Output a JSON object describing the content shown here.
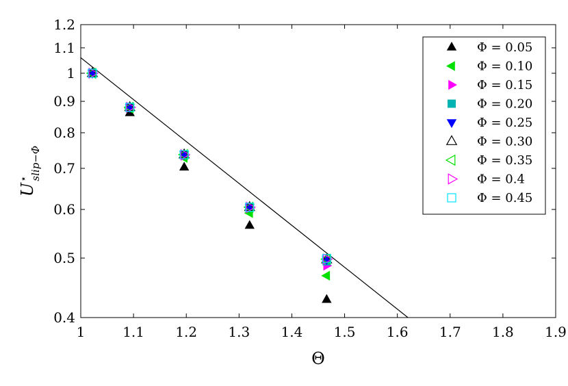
{
  "chart_data": {
    "type": "scatter",
    "xlabel": "Θ",
    "ylabel_main": "U",
    "ylabel_sup": "⋆",
    "ylabel_sub": "slip−Φ",
    "xlim": [
      1,
      1.9
    ],
    "ylim": [
      0.4,
      1.2
    ],
    "yscale": "log",
    "xticks": [
      1,
      1.1,
      1.2,
      1.3,
      1.4,
      1.5,
      1.6,
      1.7,
      1.8,
      1.9
    ],
    "xtick_labels": [
      "1",
      "1.1",
      "1.2",
      "1.3",
      "1.4",
      "1.5",
      "1.6",
      "1.7",
      "1.8",
      "1.9"
    ],
    "yticks": [
      0.4,
      0.5,
      0.6,
      0.7,
      0.8,
      0.9,
      1,
      1.1,
      1.2
    ],
    "ytick_labels": [
      "0.4",
      "0.5",
      "0.6",
      "0.7",
      "0.8",
      "0.9",
      "1",
      "1.1",
      "1.2"
    ],
    "legend_position": "top-right",
    "grid": false,
    "fit_line": {
      "x": [
        1,
        1.62
      ],
      "y": [
        1.06,
        0.4
      ]
    },
    "series": [
      {
        "name": "Φ = 0.05",
        "marker": "triangle-up",
        "filled": true,
        "color": "#000000",
        "x": [
          1.022,
          1.093,
          1.196,
          1.32,
          1.466
        ],
        "y": [
          1.0,
          0.862,
          0.703,
          0.565,
          0.428
        ]
      },
      {
        "name": "Φ = 0.10",
        "marker": "triangle-left",
        "filled": true,
        "color": "#00e000",
        "x": [
          1.022,
          1.093,
          1.196,
          1.32,
          1.466
        ],
        "y": [
          1.0,
          0.876,
          0.728,
          0.592,
          0.468
        ]
      },
      {
        "name": "Φ = 0.15",
        "marker": "triangle-right",
        "filled": true,
        "color": "#ff00ff",
        "x": [
          1.022,
          1.093,
          1.196,
          1.32,
          1.466
        ],
        "y": [
          1.0,
          0.879,
          0.734,
          0.603,
          0.486
        ]
      },
      {
        "name": "Φ = 0.20",
        "marker": "square",
        "filled": true,
        "color": "#00b3b3",
        "x": [
          1.022,
          1.093,
          1.196,
          1.32,
          1.466
        ],
        "y": [
          1.0,
          0.88,
          0.737,
          0.605,
          0.494
        ]
      },
      {
        "name": "Φ = 0.25",
        "marker": "triangle-down",
        "filled": true,
        "color": "#0000ff",
        "x": [
          1.022,
          1.093,
          1.196,
          1.32,
          1.466
        ],
        "y": [
          1.0,
          0.88,
          0.737,
          0.605,
          0.497
        ]
      },
      {
        "name": "Φ = 0.30",
        "marker": "triangle-up",
        "filled": false,
        "color": "#000000",
        "x": [
          1.022,
          1.093,
          1.196,
          1.32,
          1.466
        ],
        "y": [
          1.0,
          0.88,
          0.737,
          0.605,
          0.497
        ]
      },
      {
        "name": "Φ = 0.35",
        "marker": "triangle-left",
        "filled": false,
        "color": "#00e000",
        "x": [
          1.022,
          1.093,
          1.196,
          1.32,
          1.466
        ],
        "y": [
          1.0,
          0.88,
          0.737,
          0.605,
          0.498
        ]
      },
      {
        "name": "Φ = 0.4",
        "marker": "triangle-right",
        "filled": false,
        "color": "#ff00ff",
        "x": [
          1.022,
          1.093,
          1.196,
          1.32,
          1.466
        ],
        "y": [
          1.0,
          0.88,
          0.737,
          0.605,
          0.498
        ]
      },
      {
        "name": "Φ = 0.45",
        "marker": "square",
        "filled": false,
        "color": "#00e5ff",
        "x": [
          1.022,
          1.093,
          1.196,
          1.32,
          1.466
        ],
        "y": [
          1.0,
          0.88,
          0.737,
          0.605,
          0.499
        ]
      }
    ]
  }
}
